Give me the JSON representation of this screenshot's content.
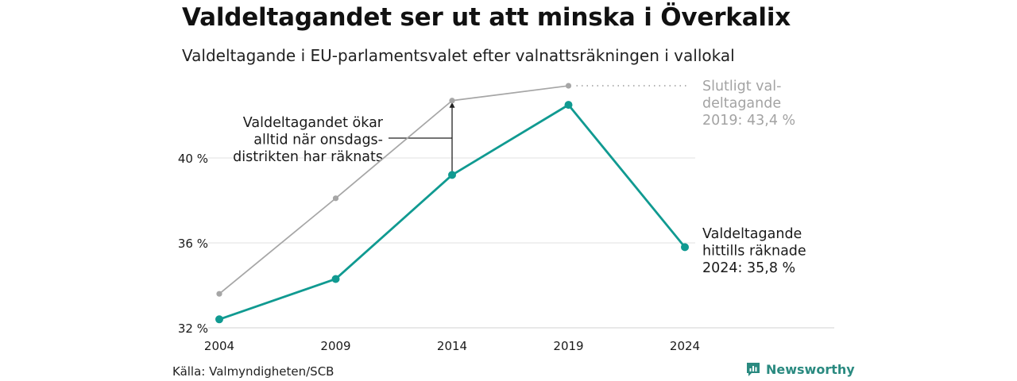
{
  "title": "Valdeltagandet ser ut att minska i Överkalix",
  "subtitle": "Valdeltagande i EU-parlamentsvalet efter valnattsräkningen i vallokal",
  "source": "Källa: Valmyndigheten/SCB",
  "brand": {
    "name": "Newsworthy",
    "logo_icon": "bar-chart-speech-icon"
  },
  "colors": {
    "current": "#109a91",
    "final": "#a6a6a6",
    "grid": "#e2e2e2",
    "text": "#1a1a1a",
    "final_text": "#a3a3a3"
  },
  "chart_data": {
    "type": "line",
    "x": [
      2004,
      2009,
      2014,
      2019,
      2024
    ],
    "xticks": [
      "2004",
      "2009",
      "2014",
      "2019",
      "2024"
    ],
    "yticks": [
      {
        "value": 32,
        "label": "32 %"
      },
      {
        "value": 36,
        "label": "36 %"
      },
      {
        "value": 40,
        "label": "40 %"
      }
    ],
    "ylim": [
      32,
      45
    ],
    "grid": true,
    "series": [
      {
        "key": "final",
        "values": [
          33.6,
          38.1,
          42.7,
          43.4,
          null
        ]
      },
      {
        "key": "current",
        "values": [
          32.4,
          34.3,
          39.2,
          42.5,
          35.8
        ]
      }
    ],
    "annotations": {
      "final": [
        "Slutligt val-",
        "deltagande",
        "2019: 43,4 %"
      ],
      "current": [
        "Valdeltagande",
        "hittills räknade",
        "2024: 35,8 %"
      ],
      "gap": [
        "Valdeltagandet ökar",
        "alltid när onsdags-",
        "distrikten har räknats"
      ]
    }
  }
}
